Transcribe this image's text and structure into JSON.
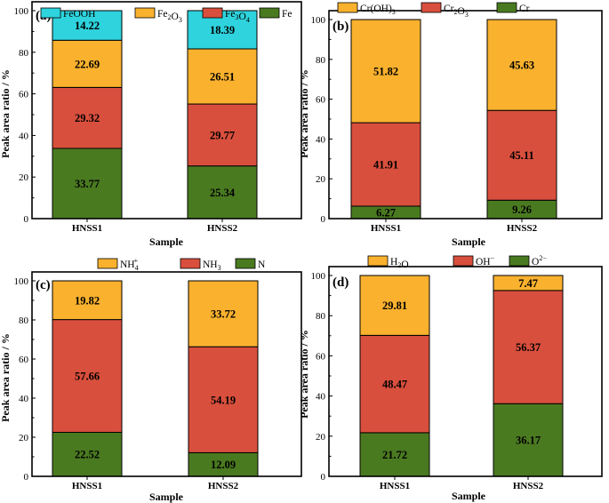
{
  "chart_data": [
    {
      "id": "a",
      "type": "bar",
      "stacked": true,
      "panel_label": "(a)",
      "categories": [
        "HNSS1",
        "HNSS2"
      ],
      "series": [
        {
          "name": "Fe",
          "legend_main": "Fe",
          "legend_sub": "",
          "legend_tail": "",
          "color": "#4a7a20",
          "values": [
            33.77,
            25.34
          ],
          "labels": [
            "33.77",
            "25.34"
          ]
        },
        {
          "name": "Fe3O4",
          "legend_main": "Fe",
          "legend_sub": "3",
          "legend_tail": "O",
          "legend_sub2": "4",
          "color": "#d94f3d",
          "values": [
            29.32,
            29.77
          ],
          "labels": [
            "29.32",
            "29.77"
          ]
        },
        {
          "name": "Fe2O3",
          "legend_main": "Fe",
          "legend_sub": "2",
          "legend_tail": "O",
          "legend_sub2": "3",
          "color": "#f9b12e",
          "values": [
            22.69,
            26.51
          ],
          "labels": [
            "22.69",
            "26.51"
          ]
        },
        {
          "name": "FeOOH",
          "legend_main": "FeOOH",
          "legend_sub": "",
          "legend_tail": "",
          "color": "#2ed3dd",
          "values": [
            14.22,
            18.39
          ],
          "labels": [
            "14.22",
            "18.39"
          ]
        }
      ],
      "legend_order": [
        "FeOOH",
        "Fe2O3",
        "Fe3O4",
        "Fe"
      ],
      "xlabel": "Sample",
      "ylabel": "Peak area ratio / %",
      "ylim": [
        0,
        100
      ],
      "yticks": [
        "0",
        "20",
        "40",
        "60",
        "80",
        "100"
      ]
    },
    {
      "id": "b",
      "type": "bar",
      "stacked": true,
      "panel_label": "(b)",
      "categories": [
        "HNSS1",
        "HNSS2"
      ],
      "series": [
        {
          "name": "Cr",
          "legend_main": "Cr",
          "legend_sub": "",
          "legend_tail": "",
          "color": "#4a7a20",
          "values": [
            6.27,
            9.26
          ],
          "labels": [
            "6.27",
            "9.26"
          ]
        },
        {
          "name": "Cr2O3",
          "legend_main": "Cr",
          "legend_sub": "2",
          "legend_tail": "O",
          "legend_sub2": "3",
          "color": "#d94f3d",
          "values": [
            41.91,
            45.11
          ],
          "labels": [
            "41.91",
            "45.11"
          ]
        },
        {
          "name": "Cr(OH)3",
          "legend_main": "Cr(OH)",
          "legend_sub": "3",
          "legend_tail": "",
          "color": "#f9b12e",
          "values": [
            51.82,
            45.63
          ],
          "labels": [
            "51.82",
            "45.63"
          ]
        }
      ],
      "legend_order": [
        "Cr(OH)3",
        "Cr2O3",
        "Cr"
      ],
      "xlabel": "Sample",
      "ylabel": "Peak area ratio / %",
      "ylim": [
        0,
        100
      ],
      "yticks": [
        "0",
        "20",
        "40",
        "60",
        "80",
        "100"
      ]
    },
    {
      "id": "c",
      "type": "bar",
      "stacked": true,
      "panel_label": "(c)",
      "categories": [
        "HNSS1",
        "HNSS2"
      ],
      "series": [
        {
          "name": "N",
          "legend_main": "N",
          "legend_sub": "",
          "legend_tail": "",
          "color": "#4a7a20",
          "values": [
            22.52,
            12.09
          ],
          "labels": [
            "22.52",
            "12.09"
          ]
        },
        {
          "name": "NH3",
          "legend_main": "NH",
          "legend_sub": "3",
          "legend_tail": "",
          "color": "#d94f3d",
          "values": [
            57.66,
            54.19
          ],
          "labels": [
            "57.66",
            "54.19"
          ]
        },
        {
          "name": "NH4+",
          "legend_main": "NH",
          "legend_sub": "4",
          "legend_sup": "+",
          "legend_tail": "",
          "color": "#f9b12e",
          "values": [
            19.82,
            33.72
          ],
          "labels": [
            "19.82",
            "33.72"
          ]
        }
      ],
      "legend_order": [
        "NH4+",
        "NH3",
        "N"
      ],
      "xlabel": "Sample",
      "ylabel": "Peak area ratio / %",
      "ylim": [
        0,
        100
      ],
      "yticks": [
        "0",
        "20",
        "40",
        "60",
        "80",
        "100"
      ]
    },
    {
      "id": "d",
      "type": "bar",
      "stacked": true,
      "panel_label": "(d)",
      "categories": [
        "HNSS1",
        "HNSS2"
      ],
      "series": [
        {
          "name": "O2-",
          "legend_main": "O",
          "legend_sub": "",
          "legend_sup": "2−",
          "legend_tail": "",
          "color": "#4a7a20",
          "values": [
            21.72,
            36.17
          ],
          "labels": [
            "21.72",
            "36.17"
          ]
        },
        {
          "name": "OH-",
          "legend_main": "OH",
          "legend_sub": "",
          "legend_sup": "−",
          "legend_tail": "",
          "color": "#d94f3d",
          "values": [
            48.47,
            56.37
          ],
          "labels": [
            "48.47",
            "56.37"
          ]
        },
        {
          "name": "H2O",
          "legend_main": "H",
          "legend_sub": "2",
          "legend_tail": "O",
          "color": "#f9b12e",
          "values": [
            29.81,
            7.47
          ],
          "labels": [
            "29.81",
            "7.47"
          ]
        }
      ],
      "legend_order": [
        "H2O",
        "OH-",
        "O2-"
      ],
      "xlabel": "Sample",
      "ylabel": "Peak area ratio / %",
      "ylim": [
        0,
        100
      ],
      "yticks": [
        "0",
        "20",
        "40",
        "60",
        "80",
        "100"
      ]
    }
  ]
}
